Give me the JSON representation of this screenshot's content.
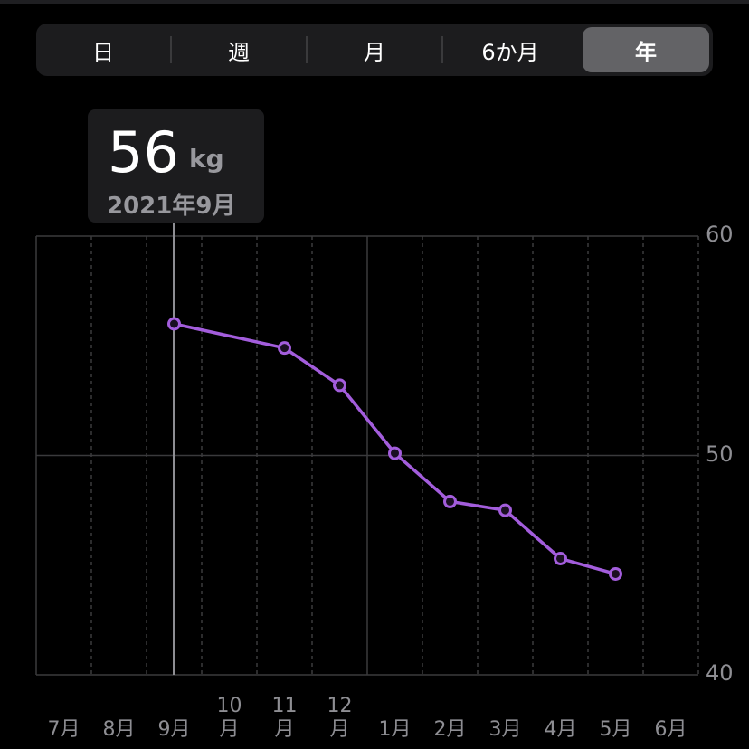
{
  "segmented_control": {
    "items": [
      {
        "label": "日",
        "active": false
      },
      {
        "label": "週",
        "active": false
      },
      {
        "label": "月",
        "active": false
      },
      {
        "label": "6か月",
        "active": false
      },
      {
        "label": "年",
        "active": true
      }
    ]
  },
  "tooltip": {
    "value": "56",
    "unit": "kg",
    "date": "2021年9月"
  },
  "colors": {
    "line": "#a35ddc",
    "point_fill": "#1a0f22",
    "grid": "#3a3a3c",
    "selection": "#8e8e93"
  },
  "chart_data": {
    "type": "line",
    "categories": [
      "7月",
      "8月",
      "9月",
      "10月",
      "11月",
      "12月",
      "1月",
      "2月",
      "3月",
      "4月",
      "5月",
      "6月"
    ],
    "x_labels": [
      [
        "7月"
      ],
      [
        "8月"
      ],
      [
        "9月"
      ],
      [
        "10",
        "月"
      ],
      [
        "11",
        "月"
      ],
      [
        "12",
        "月"
      ],
      [
        "1月"
      ],
      [
        "2月"
      ],
      [
        "3月"
      ],
      [
        "4月"
      ],
      [
        "5月"
      ],
      [
        "6月"
      ]
    ],
    "yticks": [
      "60",
      "50",
      "40"
    ],
    "ylim": [
      40,
      60
    ],
    "selected_index": 0,
    "series": [
      {
        "points": [
          {
            "x": 2.5,
            "y": 56.0
          },
          {
            "x": 4.5,
            "y": 54.9
          },
          {
            "x": 5.5,
            "y": 53.2
          },
          {
            "x": 6.5,
            "y": 50.1
          },
          {
            "x": 7.5,
            "y": 47.9
          },
          {
            "x": 8.5,
            "y": 47.5
          },
          {
            "x": 9.5,
            "y": 45.3
          },
          {
            "x": 10.5,
            "y": 44.6
          }
        ]
      }
    ]
  }
}
